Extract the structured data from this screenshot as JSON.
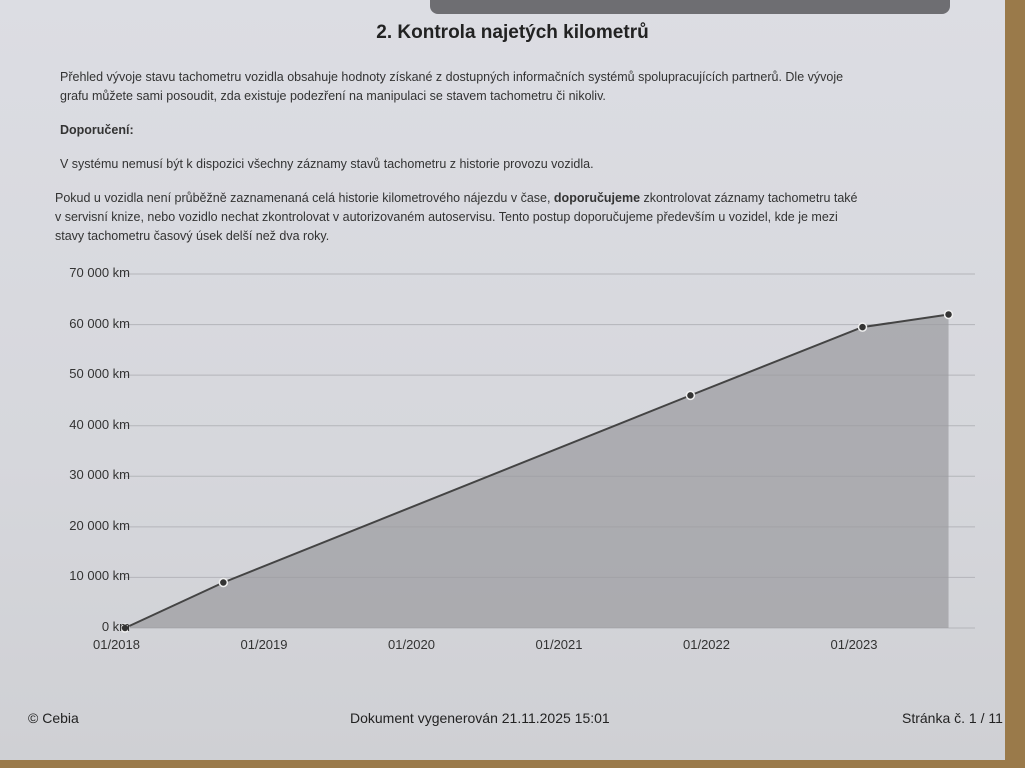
{
  "title": "2. Kontrola najetých kilometrů",
  "intro_line1": "Přehled vývoje stavu tachometru vozidla obsahuje hodnoty získané z dostupných informačních systémů spolupracujících partnerů. Dle vývoje",
  "intro_line2": "grafu můžete sami posoudit, zda existuje podezření na manipulaci se stavem tachometru či nikoliv.",
  "recommendation_heading": "Doporučení:",
  "recommendation_text": "V systému nemusí být k dispozici všechny záznamy stavů tachometru z historie provozu vozidla.",
  "advice_line1_a": "Pokud u vozidla není průběžně zaznamenaná celá historie kilometrového nájezdu v čase, ",
  "advice_line1_b": "doporučujeme",
  "advice_line1_c": " zkontrolovat záznamy tachometru také",
  "advice_line2": "v servisní knize, nebo vozidlo nechat zkontrolovat v autorizovaném autoservisu. Tento postup doporučujeme především u vozidel, kde je mezi",
  "advice_line3": "stavy tachometru časový úsek delší než dva roky.",
  "chart_data": {
    "type": "area",
    "x_type": "date",
    "points": [
      {
        "x": "2018-01",
        "y": 0
      },
      {
        "x": "2018-09",
        "y": 9000
      },
      {
        "x": "2021-11",
        "y": 46000
      },
      {
        "x": "2023-01",
        "y": 59500
      },
      {
        "x": "2023-08",
        "y": 62000
      }
    ],
    "ylim": [
      0,
      70000
    ],
    "y_ticks": [
      "0 km",
      "10 000 km",
      "20 000 km",
      "30 000 km",
      "40 000 km",
      "50 000 km",
      "60 000 km",
      "70 000 km"
    ],
    "x_ticks": [
      "01/2018",
      "01/2019",
      "01/2020",
      "01/2021",
      "01/2022",
      "01/2023"
    ],
    "grid": true,
    "line_color": "#444444",
    "fill_color": "#9a9a9e"
  },
  "footer": {
    "copyright": "© Cebia",
    "generated": "Dokument vygenerován 21.11.2025 15:01",
    "page": "Stránka č. 1 / 11"
  }
}
